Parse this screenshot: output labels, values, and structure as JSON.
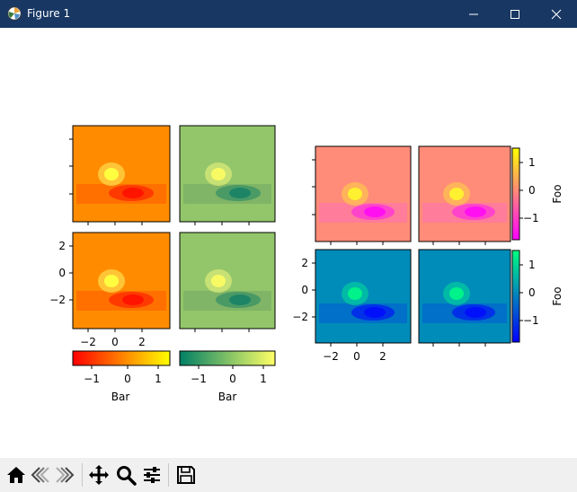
{
  "window": {
    "title": "Figure 1",
    "icon": "matplotlib-logo-icon",
    "controls": [
      "minimize-icon",
      "maximize-icon",
      "close-icon"
    ]
  },
  "figure": {
    "left_group": {
      "tick_labels_y": [
        "2",
        "0",
        "−2"
      ],
      "tick_labels_x": [
        "−2",
        "0",
        "2"
      ],
      "colorbars": [
        {
          "name": "autumn",
          "label": "Bar",
          "ticks": [
            "−1",
            "0",
            "1"
          ]
        },
        {
          "name": "summer",
          "label": "Bar",
          "ticks": [
            "−1",
            "0",
            "1"
          ]
        }
      ]
    },
    "right_group": {
      "tick_labels_y": [
        "2",
        "0",
        "−2"
      ],
      "tick_labels_x": [
        "−2",
        "0",
        "2"
      ],
      "colorbars": [
        {
          "name": "spring",
          "label": "Foo",
          "ticks": [
            "1",
            "0",
            "−1"
          ]
        },
        {
          "name": "winter",
          "label": "Foo",
          "ticks": [
            "1",
            "0",
            "−1"
          ]
        }
      ]
    },
    "colors": {
      "autumn_bg": "#ff8c00",
      "summer_bg": "#93c66a",
      "spring_bg": "#ff8c78",
      "winter_bg": "#008cb9"
    }
  },
  "toolbar": {
    "tools": [
      "home-icon",
      "back-icon",
      "forward-icon",
      "pan-icon",
      "zoom-icon",
      "configure-subplots-icon",
      "save-icon"
    ]
  }
}
